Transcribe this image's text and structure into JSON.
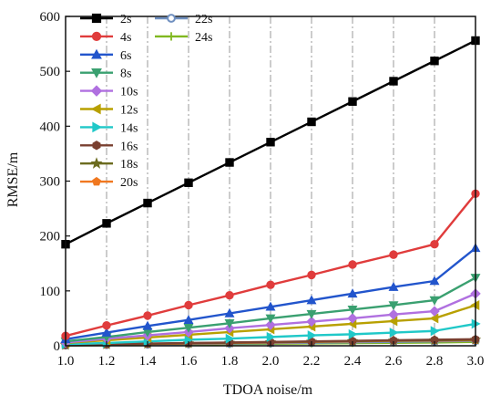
{
  "chart_data": {
    "type": "line",
    "xlabel": "TDOA noise/m",
    "ylabel": "RMSE/m",
    "x": [
      1.0,
      1.2,
      1.4,
      1.6,
      1.8,
      2.0,
      2.2,
      2.4,
      2.6,
      2.8,
      3.0
    ],
    "xlim": [
      1.0,
      3.0
    ],
    "ylim": [
      0,
      600
    ],
    "xticks": [
      "1.0",
      "1.2",
      "1.4",
      "1.6",
      "1.8",
      "2.0",
      "2.2",
      "2.4",
      "2.6",
      "2.8",
      "3.0"
    ],
    "yticks": [
      "0",
      "100",
      "200",
      "300",
      "400",
      "500",
      "600"
    ],
    "grid": "vertical dash-dot",
    "legend_position": "top-left",
    "series": [
      {
        "name": "2s",
        "color": "#000000",
        "marker": "square",
        "values": [
          185,
          223,
          260,
          297,
          334,
          371,
          408,
          445,
          482,
          519,
          556
        ]
      },
      {
        "name": "4s",
        "color": "#e03c3c",
        "marker": "circle",
        "values": [
          18,
          37,
          55,
          74,
          92,
          111,
          129,
          148,
          166,
          185,
          277
        ]
      },
      {
        "name": "6s",
        "color": "#2255cc",
        "marker": "triangle-up",
        "values": [
          12,
          24,
          36,
          47,
          59,
          71,
          83,
          95,
          107,
          118,
          178
        ]
      },
      {
        "name": "8s",
        "color": "#3aa070",
        "marker": "triangle-down",
        "values": [
          8,
          16,
          25,
          33,
          41,
          50,
          58,
          66,
          74,
          83,
          124
        ]
      },
      {
        "name": "10s",
        "color": "#b070e0",
        "marker": "diamond",
        "values": [
          6,
          13,
          19,
          25,
          32,
          38,
          44,
          50,
          57,
          63,
          95
        ]
      },
      {
        "name": "12s",
        "color": "#b8a000",
        "marker": "triangle-left",
        "values": [
          5,
          10,
          15,
          20,
          25,
          30,
          35,
          40,
          45,
          50,
          74
        ]
      },
      {
        "name": "14s",
        "color": "#20c8c8",
        "marker": "triangle-right",
        "values": [
          3,
          5,
          8,
          11,
          13,
          16,
          19,
          21,
          24,
          27,
          40
        ]
      },
      {
        "name": "16s",
        "color": "#7a4030",
        "marker": "hexagon",
        "values": [
          1.5,
          3,
          4,
          5,
          6,
          7,
          8,
          9,
          10,
          11,
          12
        ]
      },
      {
        "name": "18s",
        "color": "#6b6b1f",
        "marker": "star",
        "values": [
          1.2,
          2.5,
          3.5,
          4.5,
          5.5,
          6.5,
          7.5,
          8.5,
          9.5,
          10,
          11
        ]
      },
      {
        "name": "20s",
        "color": "#f07820",
        "marker": "pentagon",
        "values": [
          1,
          2,
          3,
          4,
          5,
          6,
          7,
          8,
          9,
          9.5,
          10
        ]
      },
      {
        "name": "22s",
        "color": "#7090c0",
        "marker": "circle-ring",
        "values": [
          0.8,
          1.6,
          2.4,
          3.2,
          4,
          4.8,
          5.6,
          6.4,
          7.2,
          8,
          9
        ]
      },
      {
        "name": "24s",
        "color": "#80b820",
        "marker": "plus",
        "values": [
          0.6,
          1.2,
          1.8,
          2.4,
          3,
          3.6,
          4.2,
          4.8,
          5.4,
          6,
          7
        ]
      }
    ]
  }
}
